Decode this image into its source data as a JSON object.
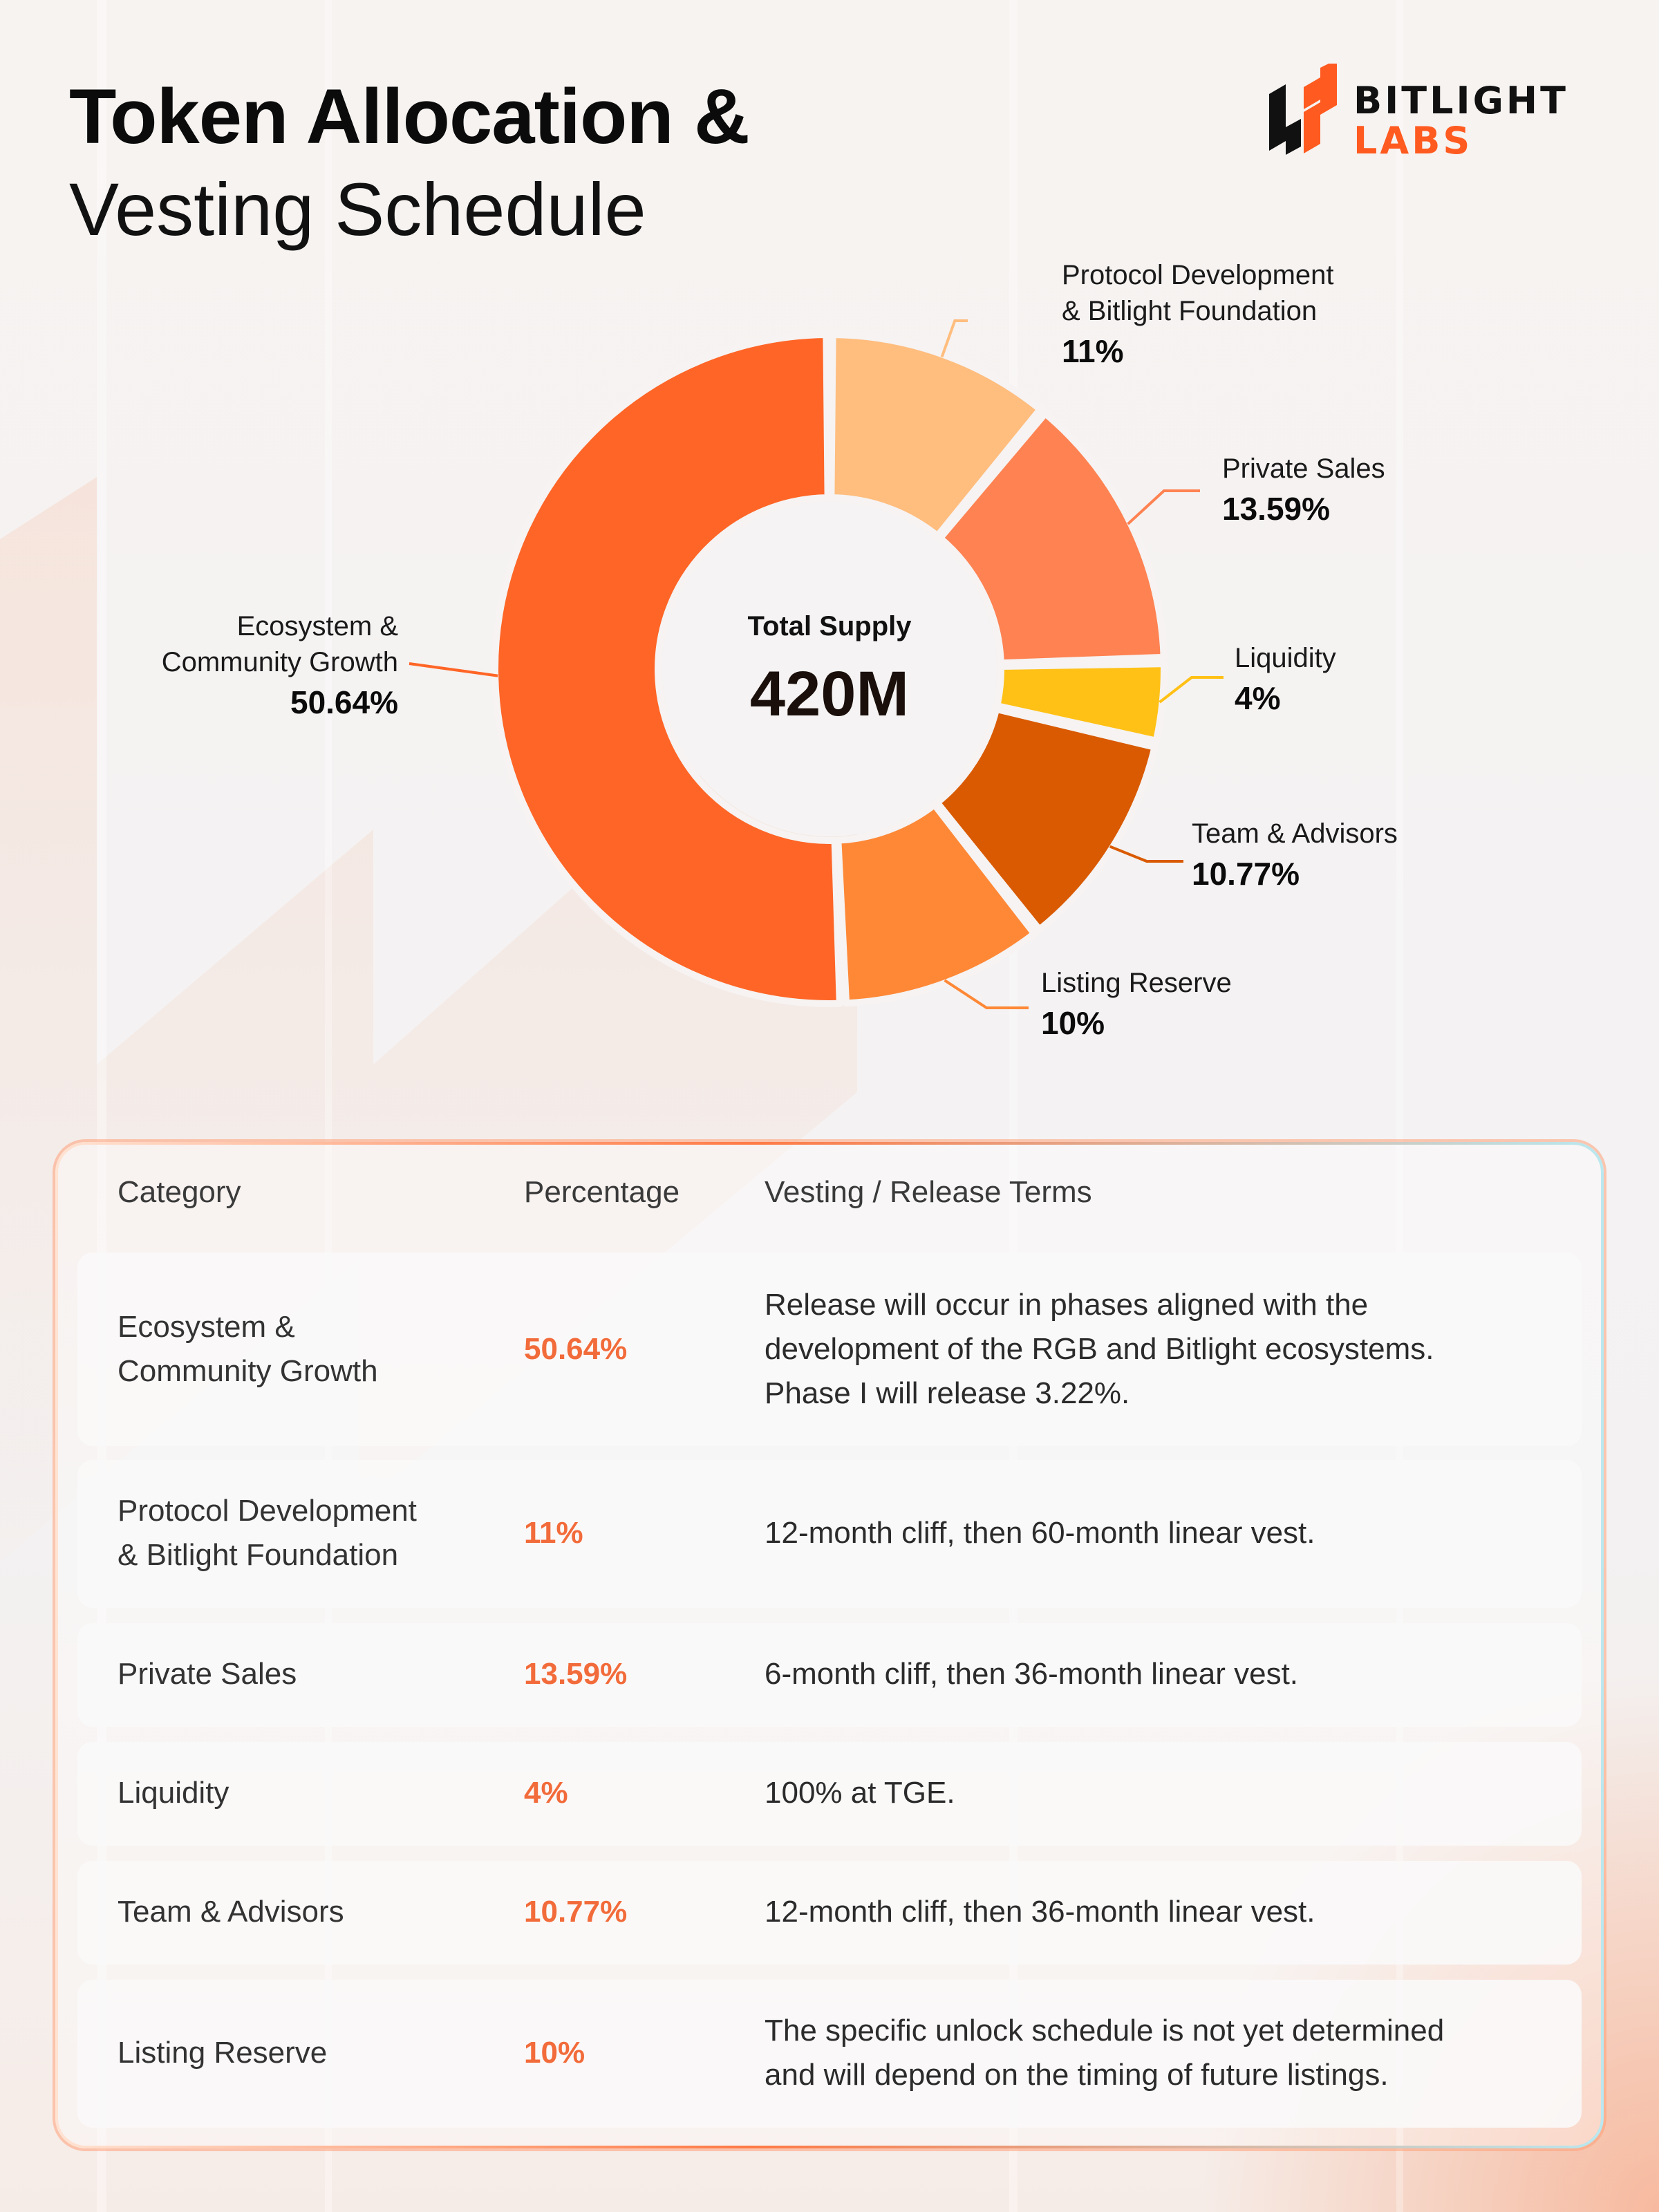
{
  "title": {
    "line1": "Token Allocation &",
    "line2": "Vesting Schedule"
  },
  "logo": {
    "word1": "BITLIGHT",
    "word2": "LABS",
    "colors": {
      "accent": "#ff5a1f",
      "dark": "#111111"
    }
  },
  "chart_data": {
    "type": "pie",
    "variant": "donut",
    "center_label": "Total Supply",
    "center_value": "420M",
    "slices": [
      {
        "name": "Protocol Development\n& Bitlight Foundation",
        "value": 11,
        "label": "11%",
        "color": "#ffbd7e"
      },
      {
        "name": "Private Sales",
        "value": 13.59,
        "label": "13.59%",
        "color": "#ff8252"
      },
      {
        "name": "Liquidity",
        "value": 4,
        "label": "4%",
        "color": "#ffc116"
      },
      {
        "name": "Team & Advisors",
        "value": 10.77,
        "label": "10.77%",
        "color": "#d95a00"
      },
      {
        "name": "Listing Reserve",
        "value": 10,
        "label": "10%",
        "color": "#ff8836"
      },
      {
        "name": "Ecosystem &\nCommunity Growth",
        "value": 50.64,
        "label": "50.64%",
        "color": "#ff6526"
      }
    ]
  },
  "table": {
    "headers": [
      "Category",
      "Percentage",
      "Vesting / Release Terms"
    ],
    "rows": [
      {
        "category": "Ecosystem &\nCommunity Growth",
        "percentage": "50.64%",
        "terms": "Release will occur in phases aligned with the\ndevelopment of the RGB and Bitlight ecosystems.\nPhase I will release 3.22%."
      },
      {
        "category": "Protocol Development\n& Bitlight Foundation",
        "percentage": "11%",
        "terms": "12-month cliff, then 60-month linear vest."
      },
      {
        "category": "Private Sales",
        "percentage": "13.59%",
        "terms": "6-month cliff, then 36-month linear vest."
      },
      {
        "category": "Liquidity",
        "percentage": "4%",
        "terms": "100% at TGE."
      },
      {
        "category": "Team & Advisors",
        "percentage": "10.77%",
        "terms": "12-month cliff, then 36-month linear vest."
      },
      {
        "category": "Listing Reserve",
        "percentage": "10%",
        "terms": "The specific unlock schedule is not yet determined\nand will depend on the timing of future listings."
      }
    ]
  }
}
